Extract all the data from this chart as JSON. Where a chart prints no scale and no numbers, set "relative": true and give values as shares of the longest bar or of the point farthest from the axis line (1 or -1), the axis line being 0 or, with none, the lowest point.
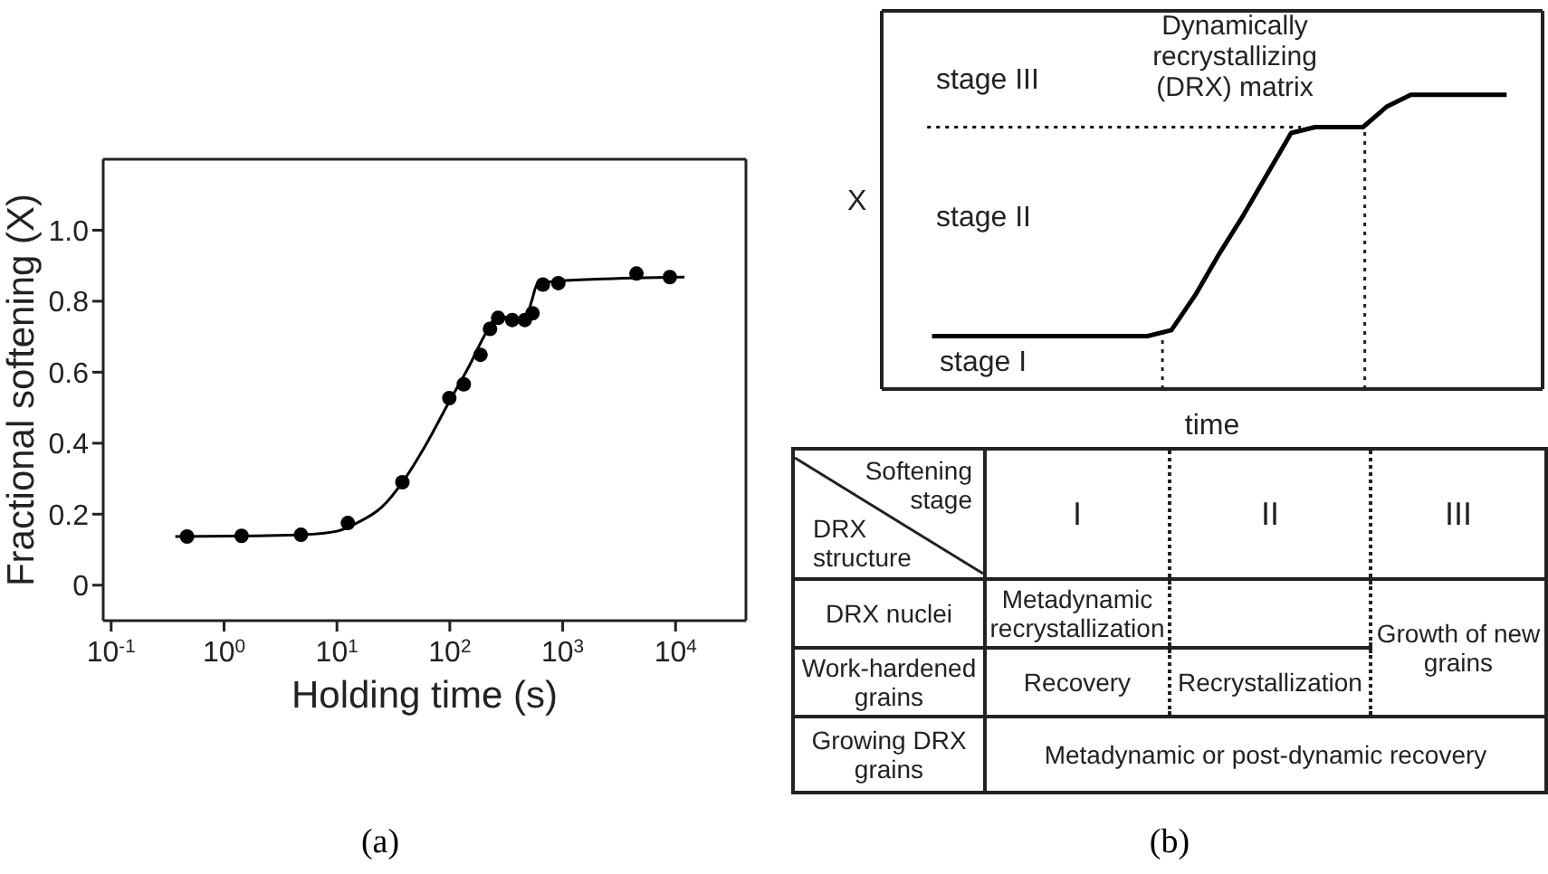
{
  "chart_data": [
    {
      "type": "scatter",
      "xlabel": "Holding time (s)",
      "ylabel": "Fractional softening (X)",
      "log": "x",
      "xlim": [
        0.085,
        42000
      ],
      "xticks": [
        {
          "value": 0.1,
          "label": "10$^{-1}$"
        },
        {
          "value": 1,
          "label": "10$^{0}$"
        },
        {
          "value": 10,
          "label": "10$^{1}$"
        },
        {
          "value": 100,
          "label": "10$^{2}$"
        },
        {
          "value": 1000,
          "label": "10$^{3}$"
        },
        {
          "value": 10000,
          "label": "10$^{4}$"
        }
      ],
      "ylim": [
        -0.1,
        1.2
      ],
      "yticks": [
        0,
        0.2,
        0.4,
        0.6,
        0.8,
        {
          "value": 1,
          "label": "1.0"
        }
      ],
      "annotations": [
        "(a)"
      ],
      "series": [
        {
          "type": "scatter",
          "marker": "circle",
          "color": "#000000",
          "x": [
            0.47,
            1.43,
            4.8,
            12.5,
            38,
            99,
            133,
            187,
            227,
            268,
            357,
            462,
            540,
            668,
            915,
            4500,
            8900
          ],
          "values": [
            0.137,
            0.139,
            0.142,
            0.175,
            0.29,
            0.527,
            0.566,
            0.649,
            0.722,
            0.753,
            0.747,
            0.747,
            0.766,
            0.847,
            0.851,
            0.878,
            0.868
          ]
        },
        {
          "type": "line",
          "color": "#000000",
          "x": [
            0.37,
            2,
            5,
            10,
            15,
            25,
            40,
            60,
            100,
            150,
            200,
            250,
            300,
            400,
            480,
            530,
            600,
            800,
            2000,
            12000
          ],
          "values": [
            0.137,
            0.139,
            0.142,
            0.152,
            0.175,
            0.22,
            0.3,
            0.39,
            0.52,
            0.62,
            0.7,
            0.75,
            0.755,
            0.752,
            0.76,
            0.8,
            0.85,
            0.855,
            0.862,
            0.868
          ]
        }
      ]
    },
    {
      "type": "line",
      "relative": true,
      "xlabel": "time",
      "ylabel": "X",
      "categories": [
        null,
        null,
        null,
        null,
        null,
        null,
        null,
        null,
        null,
        null,
        null,
        null,
        null,
        null,
        null,
        null,
        null,
        null,
        null,
        null,
        null,
        null,
        null,
        null,
        null
      ],
      "series": [
        {
          "color": "#000000",
          "values": [
            0.18,
            0.18,
            0.18,
            0.18,
            0.18,
            0.18,
            0.18,
            0.18,
            0.18,
            0.18,
            0.2,
            0.32,
            0.46,
            0.59,
            0.73,
            0.87,
            0.89,
            0.89,
            0.89,
            0.96,
            1,
            1,
            1,
            1,
            1
          ]
        }
      ],
      "ref_lines": [
        {
          "axis": "y",
          "value": 0.89,
          "color": "#000000",
          "line_style": "dotted"
        }
      ],
      "annotations": [
        "stage III",
        "stage II",
        "stage I",
        "Dynamically recrystallizing (DRX) matrix"
      ]
    },
    {
      "type": "other",
      "annotations": [
        "Softening stage",
        "DRX structure",
        "I",
        "II",
        "III",
        "DRX nuclei",
        "Metadynamic recrystallization",
        "Growth of new grains",
        "Work-hardened grains",
        "Recovery",
        "Recrystallization",
        "Growing DRX grains",
        "Metadynamic or post-dynamic recovery",
        "(b)"
      ]
    }
  ]
}
